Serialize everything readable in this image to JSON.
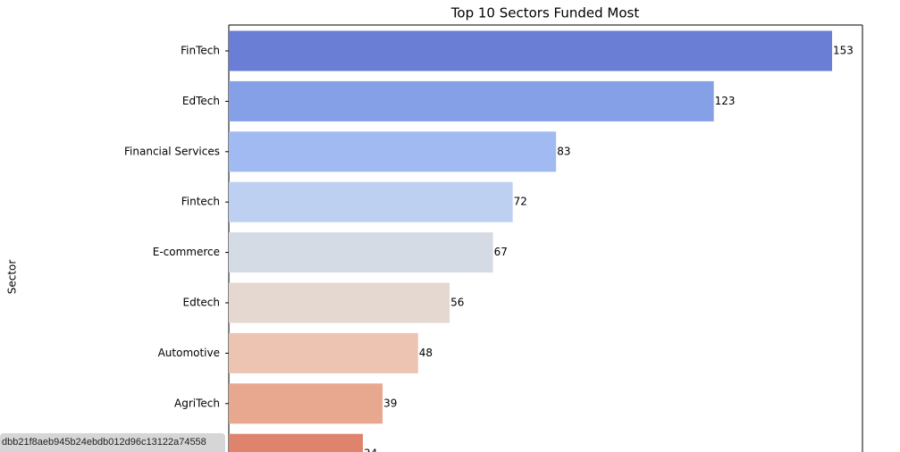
{
  "chart_data": {
    "type": "barh",
    "title": "Top 10 Sectors Funded Most",
    "y_label": "Sector",
    "categories": [
      "FinTech",
      "EdTech",
      "Financial Services",
      "Fintech",
      "E-commerce",
      "Edtech",
      "Automotive",
      "AgriTech",
      null
    ],
    "values": [
      153,
      123,
      83,
      72,
      67,
      56,
      48,
      39,
      34
    ],
    "colors": [
      "#6a7ed5",
      "#85a0e6",
      "#a2baf2",
      "#bdd0f2",
      "#d5dbe5",
      "#e4d8d0",
      "#ecc4b1",
      "#e8a78f",
      "#de836c"
    ],
    "xlim": [
      0,
      160.7
    ]
  },
  "tooltip": "dbb21f8aeb945b24ebdb012d96c13122a74558"
}
